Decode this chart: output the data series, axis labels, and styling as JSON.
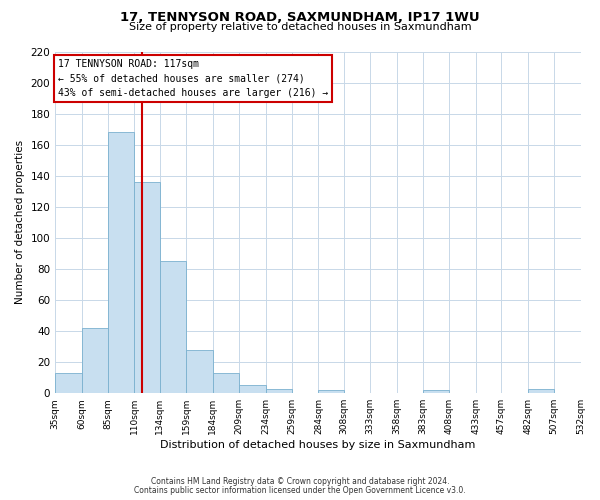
{
  "title": "17, TENNYSON ROAD, SAXMUNDHAM, IP17 1WU",
  "subtitle": "Size of property relative to detached houses in Saxmundham",
  "xlabel": "Distribution of detached houses by size in Saxmundham",
  "ylabel": "Number of detached properties",
  "bin_edges": [
    35,
    60,
    85,
    110,
    134,
    159,
    184,
    209,
    234,
    259,
    284,
    308,
    333,
    358,
    383,
    408,
    433,
    457,
    482,
    507,
    532
  ],
  "bar_heights": [
    13,
    42,
    168,
    136,
    85,
    28,
    13,
    5,
    3,
    0,
    2,
    0,
    0,
    0,
    2,
    0,
    0,
    0,
    3,
    0
  ],
  "bar_color": "#c8dff0",
  "bar_edgecolor": "#7ab0cf",
  "vline_x": 117,
  "vline_color": "#cc0000",
  "annotation_title": "17 TENNYSON ROAD: 117sqm",
  "annotation_line1": "← 55% of detached houses are smaller (274)",
  "annotation_line2": "43% of semi-detached houses are larger (216) →",
  "annotation_box_edgecolor": "#cc0000",
  "ylim": [
    0,
    220
  ],
  "yticks": [
    0,
    20,
    40,
    60,
    80,
    100,
    120,
    140,
    160,
    180,
    200,
    220
  ],
  "xtick_labels": [
    "35sqm",
    "60sqm",
    "85sqm",
    "110sqm",
    "134sqm",
    "159sqm",
    "184sqm",
    "209sqm",
    "234sqm",
    "259sqm",
    "284sqm",
    "308sqm",
    "333sqm",
    "358sqm",
    "383sqm",
    "408sqm",
    "433sqm",
    "457sqm",
    "482sqm",
    "507sqm",
    "532sqm"
  ],
  "footer_line1": "Contains HM Land Registry data © Crown copyright and database right 2024.",
  "footer_line2": "Contains public sector information licensed under the Open Government Licence v3.0.",
  "background_color": "#ffffff",
  "grid_color": "#c8d8e8"
}
